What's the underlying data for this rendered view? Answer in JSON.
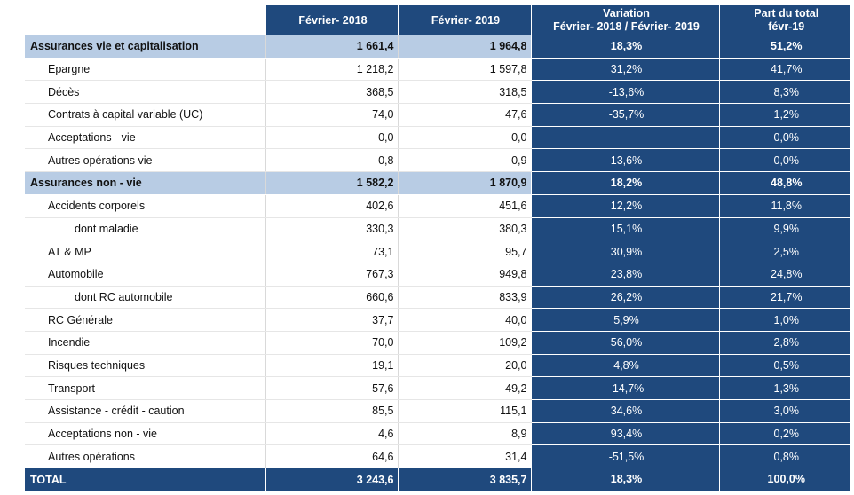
{
  "headers": {
    "col1": "Février- 2018",
    "col2": "Février- 2019",
    "col3_line1": "Variation",
    "col3_line2": "Février- 2018 / Février- 2019",
    "col4_line1": "Part du total",
    "col4_line2": "févr-19"
  },
  "rows": [
    {
      "label": "Assurances vie et capitalisation",
      "v2018": "1 661,4",
      "v2019": "1 964,8",
      "variation": "18,3%",
      "part": "51,2%"
    },
    {
      "label": "Epargne",
      "v2018": "1 218,2",
      "v2019": "1 597,8",
      "variation": "31,2%",
      "part": "41,7%"
    },
    {
      "label": "Décès",
      "v2018": "368,5",
      "v2019": "318,5",
      "variation": "-13,6%",
      "part": "8,3%"
    },
    {
      "label": "Contrats à capital variable (UC)",
      "v2018": "74,0",
      "v2019": "47,6",
      "variation": "-35,7%",
      "part": "1,2%"
    },
    {
      "label": "Acceptations - vie",
      "v2018": "0,0",
      "v2019": "0,0",
      "variation": "",
      "part": "0,0%"
    },
    {
      "label": "Autres opérations vie",
      "v2018": "0,8",
      "v2019": "0,9",
      "variation": "13,6%",
      "part": "0,0%"
    },
    {
      "label": "Assurances non - vie",
      "v2018": "1 582,2",
      "v2019": "1 870,9",
      "variation": "18,2%",
      "part": "48,8%"
    },
    {
      "label": "Accidents corporels",
      "v2018": "402,6",
      "v2019": "451,6",
      "variation": "12,2%",
      "part": "11,8%"
    },
    {
      "label": "dont maladie",
      "v2018": "330,3",
      "v2019": "380,3",
      "variation": "15,1%",
      "part": "9,9%"
    },
    {
      "label": "AT & MP",
      "v2018": "73,1",
      "v2019": "95,7",
      "variation": "30,9%",
      "part": "2,5%"
    },
    {
      "label": "Automobile",
      "v2018": "767,3",
      "v2019": "949,8",
      "variation": "23,8%",
      "part": "24,8%"
    },
    {
      "label": "dont RC automobile",
      "v2018": "660,6",
      "v2019": "833,9",
      "variation": "26,2%",
      "part": "21,7%"
    },
    {
      "label": "RC Générale",
      "v2018": "37,7",
      "v2019": "40,0",
      "variation": "5,9%",
      "part": "1,0%"
    },
    {
      "label": "Incendie",
      "v2018": "70,0",
      "v2019": "109,2",
      "variation": "56,0%",
      "part": "2,8%"
    },
    {
      "label": "Risques techniques",
      "v2018": "19,1",
      "v2019": "20,0",
      "variation": "4,8%",
      "part": "0,5%"
    },
    {
      "label": "Transport",
      "v2018": "57,6",
      "v2019": "49,2",
      "variation": "-14,7%",
      "part": "1,3%"
    },
    {
      "label": "Assistance - crédit - caution",
      "v2018": "85,5",
      "v2019": "115,1",
      "variation": "34,6%",
      "part": "3,0%"
    },
    {
      "label": "Acceptations non - vie",
      "v2018": "4,6",
      "v2019": "8,9",
      "variation": "93,4%",
      "part": "0,2%"
    },
    {
      "label": "Autres opérations",
      "v2018": "64,6",
      "v2019": "31,4",
      "variation": "-51,5%",
      "part": "0,8%"
    },
    {
      "label": "TOTAL",
      "v2018": "3 243,6",
      "v2019": "3 835,7",
      "variation": "18,3%",
      "part": "100,0%"
    }
  ],
  "colors": {
    "header_blue": "#1f497d",
    "section_light_blue": "#b8cce4"
  }
}
